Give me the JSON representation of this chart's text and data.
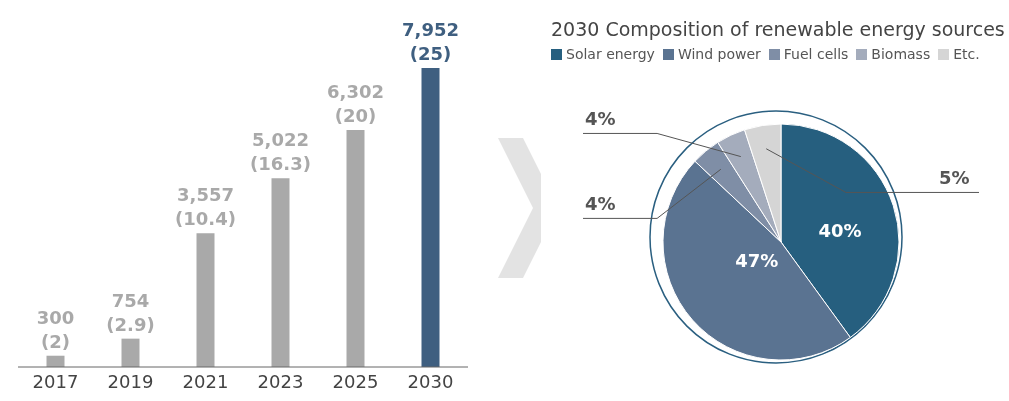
{
  "chart_data": [
    {
      "type": "bar",
      "categories": [
        "2017",
        "2019",
        "2021",
        "2023",
        "2025",
        "2030"
      ],
      "values": [
        300,
        754,
        3557,
        5022,
        6302,
        7952
      ],
      "colors": [
        "#a9a9a9",
        "#a9a9a9",
        "#a9a9a9",
        "#a9a9a9",
        "#a9a9a9",
        "#3f5f80"
      ],
      "value_labels": [
        "300\n(2)",
        "754\n(2.9)",
        "3,557\n(10.4)",
        "5,022\n(16.3)",
        "6,302\n(20)",
        "7,952\n(25)"
      ]
    },
    {
      "type": "pie",
      "title": "2030 Composition of renewable energy sources",
      "categories": [
        "Solar energy",
        "Wind power",
        "Fuel cells",
        "Biomass",
        "Etc."
      ],
      "values": [
        40,
        47,
        4,
        4,
        5
      ],
      "colors": [
        "#265f7f",
        "#5a7391",
        "#7f8ea6",
        "#a4acbc",
        "#d5d5d5"
      ],
      "value_labels": [
        "40%",
        "47%",
        "4%",
        "4%",
        "5%"
      ],
      "legend": "top left"
    }
  ]
}
